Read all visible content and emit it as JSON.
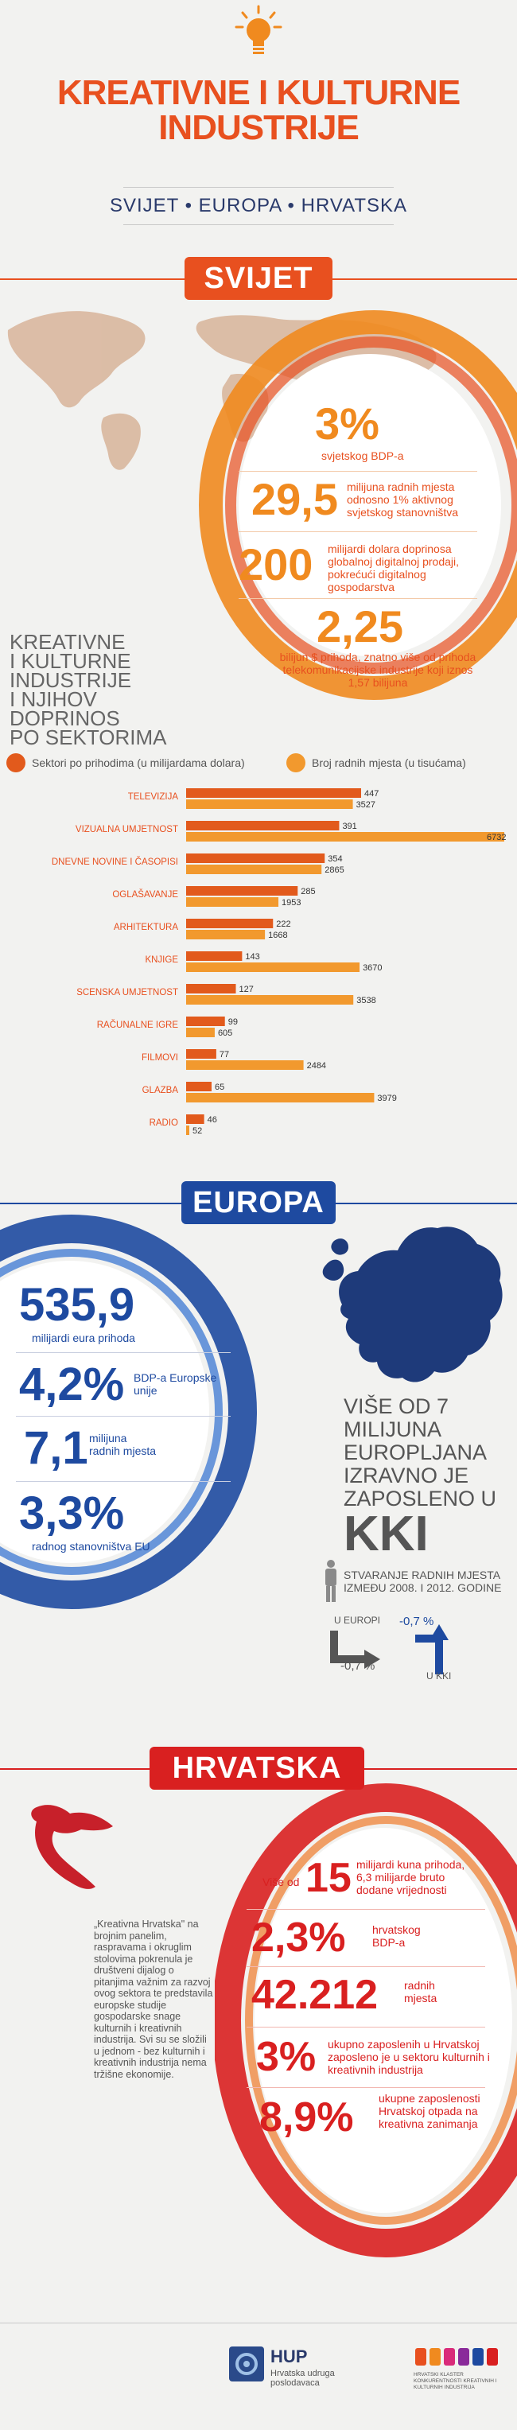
{
  "header": {
    "title_line1": "KREATIVNE I KULTURNE",
    "title_line2": "INDUSTRIJE",
    "subtitle": "SVIJET • EUROPA • HRVATSKA"
  },
  "svijet": {
    "banner": "SVIJET",
    "stats": [
      {
        "big": "3%",
        "text": "svjetskog BDP-a"
      },
      {
        "big": "29,5",
        "text": "milijuna radnih mjesta odnosno 1% aktivnog svjetskog stanovništva"
      },
      {
        "big": "200",
        "text": "milijardi dolara doprinosa globalnoj digitalnoj prodaji, pokrećući digitalnog gospodarstva"
      },
      {
        "big": "2,25",
        "text": "bilijun $ prihoda, znatno više od prihoda telekomunikacijske industrije koji iznos 1,57 bilijuna"
      }
    ],
    "chart_heading": [
      "KREATIVNE",
      "I KULTURNE",
      "INDUSTRIJE",
      "I NJIHOV DOPRINOS",
      "PO SEKTORIMA"
    ],
    "legend": {
      "revenue": "Sektori po prihodima (u milijardama dolara)",
      "jobs": "Broj radnih mjesta (u tisućama)"
    },
    "colors": {
      "revenue": "#e25a1c",
      "jobs": "#f2992e"
    }
  },
  "chart_data": {
    "type": "bar",
    "categories": [
      "TELEVIZIJA",
      "VIZUALNA UMJETNOST",
      "DNEVNE NOVINE I ČASOPISI",
      "OGLAŠAVANJE",
      "ARHITEKTURA",
      "KNJIGE",
      "SCENSKA UMJETNOST",
      "RAČUNALNE IGRE",
      "FILMOVI",
      "GLAZBA",
      "RADIO"
    ],
    "series": [
      {
        "name": "Sektori po prihodima (u milijardama dolara)",
        "values": [
          447,
          391,
          354,
          285,
          222,
          143,
          127,
          99,
          77,
          65,
          46
        ]
      },
      {
        "name": "Broj radnih mjesta (u tisućama)",
        "values": [
          3527,
          6732,
          2865,
          1953,
          1668,
          3670,
          3538,
          605,
          2484,
          3979,
          52
        ]
      }
    ],
    "title": "",
    "xlabel": "",
    "ylabel": ""
  },
  "europa": {
    "banner": "EUROPA",
    "stats": [
      {
        "big": "535,9",
        "text": "milijardi eura prihoda"
      },
      {
        "big": "4,2%",
        "text": "BDP-a Europske unije"
      },
      {
        "big": "7,1",
        "text": "milijuna radnih mjesta"
      },
      {
        "big": "3,3%",
        "text": "radnog stanovništva EU"
      }
    ],
    "employed_lines": [
      "VIŠE OD 7",
      "MILIJUNA",
      "EUROPLJANA",
      "IZRAVNO JE",
      "ZAPOSLENO U"
    ],
    "kki": "KKI",
    "change_title": "STVARANJE RADNIH MJESTA IZMEĐU 2008. I 2012. GODINE",
    "eu_label": "U EUROPI",
    "eu_value": "-0,7 %",
    "kki_label": "U KKI",
    "kki_value": "-0,7 %"
  },
  "hrvatska": {
    "banner": "HRVATSKA",
    "quote": "„Kreativna Hrvatska\" na brojnim panelim, raspravama i okruglim stolovima pokrenula je društveni dijalog o pitanjima važnim za razvoj ovog sektora te predstavila europske studije gospodarske snage kulturnih i kreativnih industrija. Svi su se složili u jednom - bez kulturnih i kreativnih industrija nema tržišne ekonomije.",
    "stats": [
      {
        "prefix": "Više od",
        "big": "15",
        "text": "milijardi kuna prihoda, 6,3 milijarde bruto dodane vrijednosti"
      },
      {
        "prefix": "",
        "big": "2,3%",
        "text": "hrvatskog BDP-a"
      },
      {
        "prefix": "",
        "big": "42.212",
        "text": "radnih mjesta"
      },
      {
        "prefix": "",
        "big": "3%",
        "text": "ukupno zaposlenih u Hrvatskoj zaposleno je u sektoru kulturnih i kreativnih industrija"
      },
      {
        "prefix": "",
        "big": "8,9%",
        "text": "ukupne zaposlenosti Hrvatskoj otpada na kreativna zanimanja"
      }
    ]
  },
  "footer": {
    "hup_name": "HUP",
    "hup_sub": "Hrvatska udruga poslodavaca",
    "cluster_text": "HRVATSKI KLASTER KONKURENTNOSTI KREATIVNIH I KULTURNIH INDUSTRIJA"
  }
}
